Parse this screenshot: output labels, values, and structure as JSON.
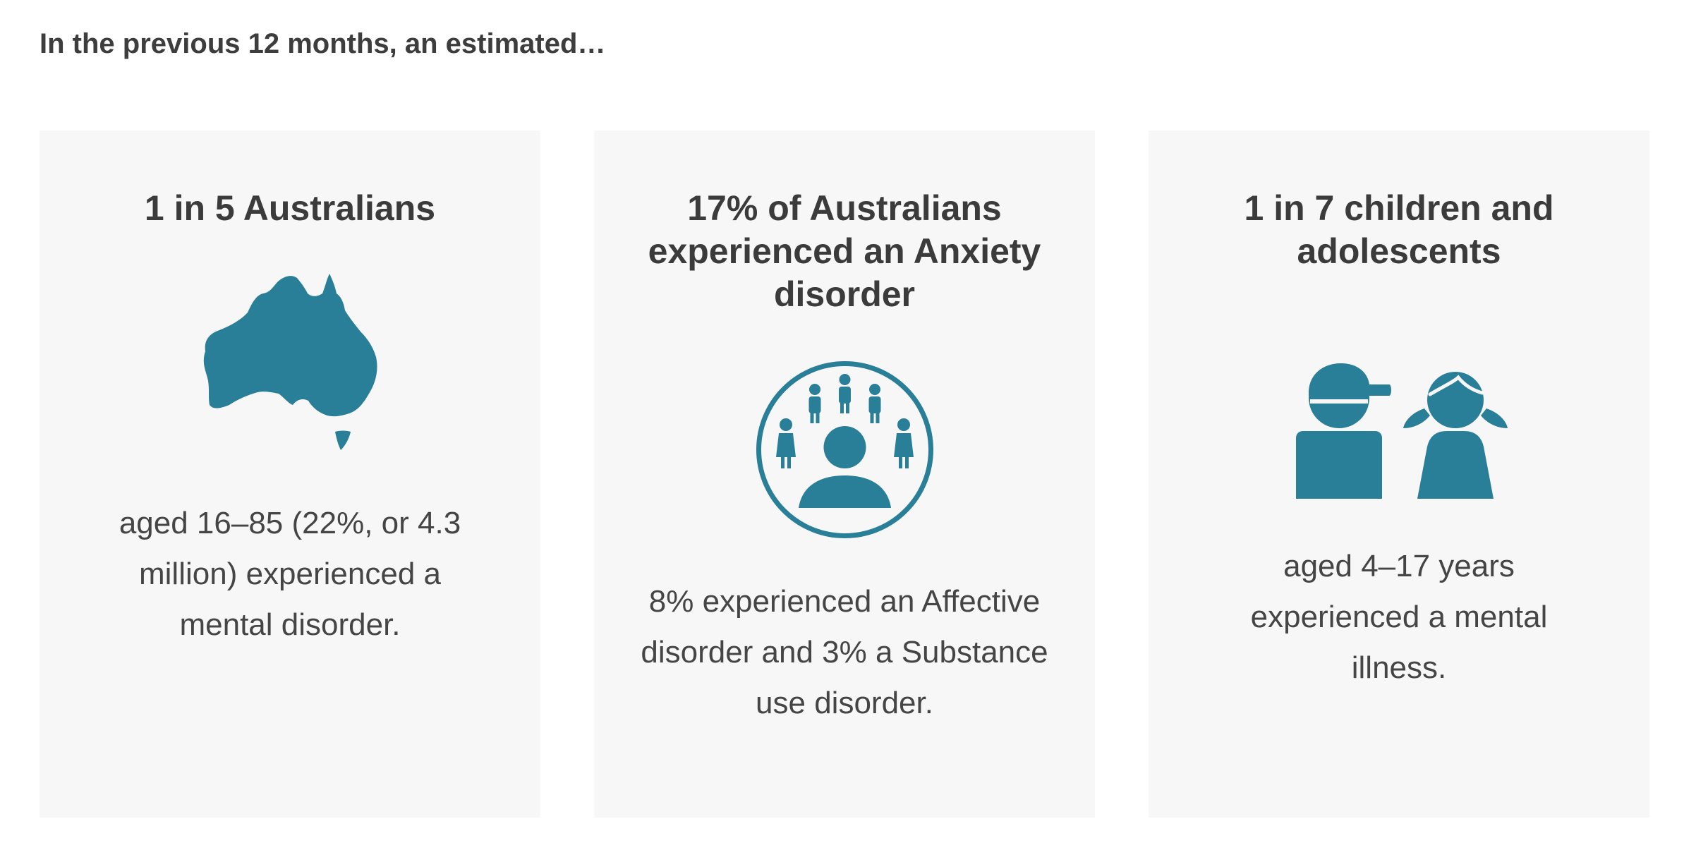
{
  "intro": "In the previous 12 months, an estimated…",
  "accent_color": "#2a7f98",
  "cards": [
    {
      "title": "1 in 5 Australians",
      "icon": "australia-map-icon",
      "description": "aged 16–85 (22%, or 4.3 million) experienced a mental disorder."
    },
    {
      "title": "17% of Australians experienced an Anxiety disorder",
      "icon": "person-surrounded-by-people-icon",
      "description": "8% experienced an Affective disorder and 3% a Substance use disorder."
    },
    {
      "title": "1 in 7 children and adolescents",
      "icon": "children-icon",
      "description": "aged 4–17 years experienced a mental illness."
    }
  ]
}
